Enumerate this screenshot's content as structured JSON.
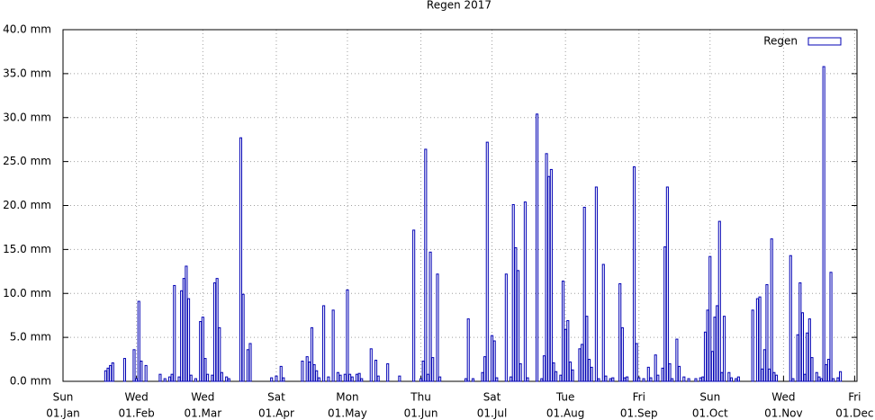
{
  "chart_data": {
    "type": "bar",
    "title": "Regen 2017",
    "series": [
      {
        "name": "Regen",
        "color": "#0000b4",
        "x": [
          "19.Jan",
          "20.Jan",
          "21.Jan",
          "22.Jan",
          "27.Jan",
          "31.Jan",
          "01.Feb",
          "02.Feb",
          "03.Feb",
          "05.Feb",
          "11.Feb",
          "13.Feb",
          "15.Feb",
          "16.Feb",
          "17.Feb",
          "19.Feb",
          "20.Feb",
          "21.Feb",
          "22.Feb",
          "23.Feb",
          "24.Feb",
          "26.Feb",
          "28.Feb",
          "01.Mar",
          "02.Mar",
          "03.Mar",
          "05.Mar",
          "06.Mar",
          "07.Mar",
          "08.Mar",
          "09.Mar",
          "11.Mar",
          "12.Mar",
          "17.Mar",
          "18.Mar",
          "20.Mar",
          "21.Mar",
          "30.Mar",
          "01.Apr",
          "03.Apr",
          "04.Apr",
          "12.Apr",
          "14.Apr",
          "15.Apr",
          "16.Apr",
          "17.Apr",
          "18.Apr",
          "19.Apr",
          "21.Apr",
          "23.Apr",
          "25.Apr",
          "27.Apr",
          "28.Apr",
          "30.Apr",
          "01.May",
          "02.May",
          "03.May",
          "05.May",
          "06.May",
          "07.May",
          "11.May",
          "13.May",
          "14.May",
          "18.May",
          "23.May",
          "29.May",
          "01.Jun",
          "02.Jun",
          "03.Jun",
          "04.Jun",
          "05.Jun",
          "06.Jun",
          "08.Jun",
          "09.Jun",
          "20.Jun",
          "21.Jun",
          "23.Jun",
          "27.Jun",
          "28.Jun",
          "29.Jun",
          "01.Jul",
          "02.Jul",
          "03.Jul",
          "07.Jul",
          "09.Jul",
          "10.Jul",
          "11.Jul",
          "12.Jul",
          "13.Jul",
          "15.Jul",
          "16.Jul",
          "20.Jul",
          "22.Jul",
          "23.Jul",
          "24.Jul",
          "25.Jul",
          "26.Jul",
          "27.Jul",
          "28.Jul",
          "30.Jul",
          "31.Jul",
          "01.Aug",
          "02.Aug",
          "03.Aug",
          "04.Aug",
          "07.Aug",
          "08.Aug",
          "09.Aug",
          "10.Aug",
          "11.Aug",
          "12.Aug",
          "14.Aug",
          "15.Aug",
          "17.Aug",
          "18.Aug",
          "20.Aug",
          "21.Aug",
          "24.Aug",
          "25.Aug",
          "26.Aug",
          "27.Aug",
          "30.Aug",
          "31.Aug",
          "01.Sep",
          "03.Sep",
          "05.Sep",
          "06.Sep",
          "08.Sep",
          "09.Sep",
          "11.Sep",
          "12.Sep",
          "13.Sep",
          "14.Sep",
          "15.Sep",
          "17.Sep",
          "18.Sep",
          "20.Sep",
          "22.Sep",
          "25.Sep",
          "27.Sep",
          "28.Sep",
          "29.Sep",
          "30.Sep",
          "01.Oct",
          "02.Oct",
          "03.Oct",
          "04.Oct",
          "05.Oct",
          "06.Oct",
          "07.Oct",
          "09.Oct",
          "10.Oct",
          "12.Oct",
          "13.Oct",
          "19.Oct",
          "21.Oct",
          "22.Oct",
          "23.Oct",
          "24.Oct",
          "25.Oct",
          "26.Oct",
          "27.Oct",
          "28.Oct",
          "29.Oct",
          "04.Nov",
          "05.Nov",
          "07.Nov",
          "08.Nov",
          "09.Nov",
          "10.Nov",
          "11.Nov",
          "12.Nov",
          "13.Nov",
          "15.Nov",
          "16.Nov",
          "17.Nov",
          "18.Nov",
          "19.Nov",
          "20.Nov",
          "21.Nov",
          "22.Nov",
          "24.Nov",
          "25.Nov"
        ],
        "values": [
          1.2,
          1.5,
          1.8,
          2.1,
          2.6,
          3.6,
          0.3,
          9.1,
          2.3,
          1.8,
          0.8,
          0.3,
          0.5,
          0.8,
          10.9,
          0.5,
          10.3,
          11.7,
          13.1,
          9.4,
          0.7,
          0.3,
          6.8,
          7.3,
          2.6,
          0.8,
          0.7,
          11.2,
          11.7,
          6.1,
          1.0,
          0.5,
          0.3,
          27.7,
          9.9,
          3.6,
          4.3,
          0.4,
          0.6,
          1.7,
          0.4,
          2.3,
          2.8,
          2.2,
          6.1,
          1.9,
          1.2,
          0.4,
          8.6,
          0.5,
          8.1,
          1.0,
          0.7,
          0.8,
          10.4,
          0.8,
          0.5,
          0.8,
          0.9,
          0.3,
          3.7,
          2.4,
          0.6,
          2.0,
          0.6,
          17.2,
          0.3,
          2.3,
          26.4,
          0.8,
          14.7,
          2.7,
          12.2,
          0.5,
          0.3,
          7.1,
          0.3,
          1.0,
          2.8,
          27.2,
          5.2,
          4.6,
          0.4,
          12.2,
          0.5,
          20.1,
          15.2,
          12.6,
          2.0,
          20.4,
          0.4,
          30.4,
          0.3,
          2.9,
          25.9,
          23.3,
          24.1,
          2.1,
          1.1,
          0.7,
          11.4,
          5.9,
          6.9,
          2.2,
          1.3,
          3.7,
          4.2,
          19.8,
          7.4,
          2.5,
          1.6,
          22.1,
          0.3,
          13.3,
          0.6,
          0.3,
          0.4,
          11.1,
          6.1,
          0.4,
          0.5,
          24.4,
          4.3,
          0.4,
          0.3,
          1.6,
          0.4,
          3.0,
          0.7,
          1.5,
          15.3,
          22.1,
          2.0,
          0.3,
          4.8,
          1.7,
          0.5,
          0.3,
          0.3,
          0.4,
          0.5,
          5.6,
          8.1,
          14.2,
          3.4,
          7.3,
          8.6,
          18.2,
          1.0,
          7.4,
          1.0,
          0.4,
          0.3,
          0.5,
          8.1,
          9.4,
          9.6,
          1.4,
          3.6,
          11.0,
          1.4,
          16.2,
          1.0,
          0.7,
          14.3,
          0.3,
          5.3,
          11.2,
          7.8,
          0.8,
          5.5,
          7.1,
          2.7,
          1.0,
          0.5,
          0.3,
          35.8,
          1.9,
          2.5,
          12.4,
          0.3,
          0.4,
          1.1
        ]
      }
    ],
    "xlim": [
      "01.Jan",
      "02.Dec"
    ],
    "xticks": [
      {
        "value": "01.Jan",
        "weekday": "Sun"
      },
      {
        "value": "01.Feb",
        "weekday": "Wed"
      },
      {
        "value": "01.Mar",
        "weekday": "Wed"
      },
      {
        "value": "01.Apr",
        "weekday": "Sat"
      },
      {
        "value": "01.May",
        "weekday": "Mon"
      },
      {
        "value": "01.Jun",
        "weekday": "Thu"
      },
      {
        "value": "01.Jul",
        "weekday": "Sat"
      },
      {
        "value": "01.Aug",
        "weekday": "Tue"
      },
      {
        "value": "01.Sep",
        "weekday": "Fri"
      },
      {
        "value": "01.Oct",
        "weekday": "Sun"
      },
      {
        "value": "01.Nov",
        "weekday": "Wed"
      },
      {
        "value": "01.Dec",
        "weekday": "Fri"
      }
    ],
    "ylim": [
      0,
      40
    ],
    "yticks": [
      {
        "value": 0,
        "label": "0.0 mm"
      },
      {
        "value": 5,
        "label": "5.0 mm"
      },
      {
        "value": 10,
        "label": "10.0 mm"
      },
      {
        "value": 15,
        "label": "15.0 mm"
      },
      {
        "value": 20,
        "label": "20.0 mm"
      },
      {
        "value": 25,
        "label": "25.0 mm"
      },
      {
        "value": 30,
        "label": "30.0 mm"
      },
      {
        "value": 35,
        "label": "35.0 mm"
      },
      {
        "value": 40,
        "label": "40.0 mm"
      }
    ],
    "grid": true,
    "legend": "upper right"
  }
}
